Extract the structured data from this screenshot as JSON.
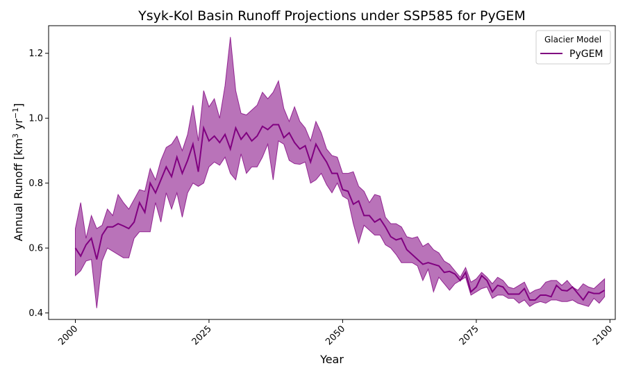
{
  "chart_data": {
    "type": "line",
    "title": "Ysyk-Kol Basin Runoff Projections under SSP585 for PyGEM",
    "xlabel": "Year",
    "ylabel_main": "Annual Runoff [km",
    "ylabel_sup1": "3",
    "ylabel_mid": " yr",
    "ylabel_sup2": "−1",
    "ylabel_end": "]",
    "xlim": [
      1995,
      2101
    ],
    "ylim": [
      0.38,
      1.285
    ],
    "xticks": [
      2000,
      2025,
      2050,
      2075,
      2100
    ],
    "yticks": [
      0.4,
      0.6,
      0.8,
      1.0,
      1.2
    ],
    "ytick_labels": [
      "0.4",
      "0.6",
      "0.8",
      "1.0",
      "1.2"
    ],
    "legend": {
      "title": "Glacier Model",
      "placement": "top-right"
    },
    "colors": {
      "line": "#800080",
      "band": "#800080"
    },
    "series": [
      {
        "name": "PyGEM",
        "x": [
          2000,
          2001,
          2002,
          2003,
          2004,
          2005,
          2006,
          2007,
          2008,
          2009,
          2010,
          2011,
          2012,
          2013,
          2014,
          2015,
          2016,
          2017,
          2018,
          2019,
          2020,
          2021,
          2022,
          2023,
          2024,
          2025,
          2026,
          2027,
          2028,
          2029,
          2030,
          2031,
          2032,
          2033,
          2034,
          2035,
          2036,
          2037,
          2038,
          2039,
          2040,
          2041,
          2042,
          2043,
          2044,
          2045,
          2046,
          2047,
          2048,
          2049,
          2050,
          2051,
          2052,
          2053,
          2054,
          2055,
          2056,
          2057,
          2058,
          2059,
          2060,
          2061,
          2062,
          2063,
          2064,
          2065,
          2066,
          2067,
          2068,
          2069,
          2070,
          2071,
          2072,
          2073,
          2074,
          2075,
          2076,
          2077,
          2078,
          2079,
          2080,
          2081,
          2082,
          2083,
          2084,
          2085,
          2086,
          2087,
          2088,
          2089,
          2090,
          2091,
          2092,
          2093,
          2094,
          2095,
          2096,
          2097,
          2098,
          2099
        ],
        "values": [
          0.6,
          0.575,
          0.61,
          0.63,
          0.565,
          0.64,
          0.665,
          0.665,
          0.675,
          0.668,
          0.66,
          0.68,
          0.74,
          0.71,
          0.8,
          0.77,
          0.81,
          0.85,
          0.82,
          0.88,
          0.83,
          0.87,
          0.92,
          0.835,
          0.97,
          0.93,
          0.945,
          0.925,
          0.95,
          0.905,
          0.97,
          0.935,
          0.955,
          0.93,
          0.945,
          0.975,
          0.965,
          0.98,
          0.98,
          0.94,
          0.955,
          0.925,
          0.905,
          0.915,
          0.865,
          0.92,
          0.89,
          0.865,
          0.83,
          0.83,
          0.78,
          0.775,
          0.735,
          0.745,
          0.7,
          0.7,
          0.68,
          0.69,
          0.665,
          0.635,
          0.625,
          0.63,
          0.595,
          0.58,
          0.565,
          0.55,
          0.555,
          0.55,
          0.545,
          0.525,
          0.528,
          0.52,
          0.5,
          0.525,
          0.465,
          0.48,
          0.515,
          0.5,
          0.465,
          0.485,
          0.48,
          0.458,
          0.458,
          0.458,
          0.475,
          0.44,
          0.44,
          0.455,
          0.455,
          0.45,
          0.485,
          0.47,
          0.468,
          0.48,
          0.46,
          0.44,
          0.465,
          0.46,
          0.46,
          0.47
        ],
        "lower": [
          0.515,
          0.53,
          0.56,
          0.565,
          0.415,
          0.56,
          0.6,
          0.59,
          0.58,
          0.57,
          0.57,
          0.63,
          0.65,
          0.65,
          0.65,
          0.74,
          0.68,
          0.77,
          0.72,
          0.77,
          0.695,
          0.77,
          0.8,
          0.79,
          0.8,
          0.85,
          0.865,
          0.855,
          0.88,
          0.83,
          0.81,
          0.89,
          0.83,
          0.85,
          0.85,
          0.88,
          0.92,
          0.81,
          0.93,
          0.92,
          0.87,
          0.86,
          0.858,
          0.865,
          0.8,
          0.81,
          0.83,
          0.795,
          0.77,
          0.8,
          0.76,
          0.75,
          0.675,
          0.615,
          0.67,
          0.655,
          0.64,
          0.64,
          0.61,
          0.6,
          0.58,
          0.555,
          0.555,
          0.555,
          0.545,
          0.5,
          0.535,
          0.465,
          0.51,
          0.49,
          0.47,
          0.49,
          0.5,
          0.51,
          0.455,
          0.465,
          0.475,
          0.48,
          0.445,
          0.455,
          0.455,
          0.445,
          0.445,
          0.43,
          0.44,
          0.42,
          0.43,
          0.435,
          0.43,
          0.44,
          0.44,
          0.435,
          0.435,
          0.44,
          0.43,
          0.425,
          0.42,
          0.445,
          0.43,
          0.45
        ],
        "upper": [
          0.66,
          0.74,
          0.63,
          0.7,
          0.66,
          0.67,
          0.72,
          0.7,
          0.765,
          0.74,
          0.72,
          0.75,
          0.78,
          0.775,
          0.845,
          0.81,
          0.87,
          0.91,
          0.92,
          0.945,
          0.9,
          0.95,
          1.04,
          0.93,
          1.085,
          1.035,
          1.06,
          1.0,
          1.1,
          1.25,
          1.085,
          1.015,
          1.01,
          1.025,
          1.04,
          1.08,
          1.06,
          1.08,
          1.115,
          1.03,
          0.99,
          1.035,
          0.99,
          0.97,
          0.93,
          0.99,
          0.955,
          0.905,
          0.885,
          0.88,
          0.83,
          0.83,
          0.835,
          0.79,
          0.775,
          0.74,
          0.765,
          0.76,
          0.695,
          0.675,
          0.675,
          0.665,
          0.635,
          0.63,
          0.635,
          0.605,
          0.615,
          0.595,
          0.585,
          0.56,
          0.55,
          0.53,
          0.51,
          0.54,
          0.495,
          0.505,
          0.525,
          0.51,
          0.49,
          0.51,
          0.5,
          0.48,
          0.475,
          0.485,
          0.495,
          0.46,
          0.47,
          0.475,
          0.495,
          0.5,
          0.5,
          0.485,
          0.5,
          0.48,
          0.47,
          0.49,
          0.48,
          0.475,
          0.49,
          0.505
        ]
      }
    ]
  }
}
